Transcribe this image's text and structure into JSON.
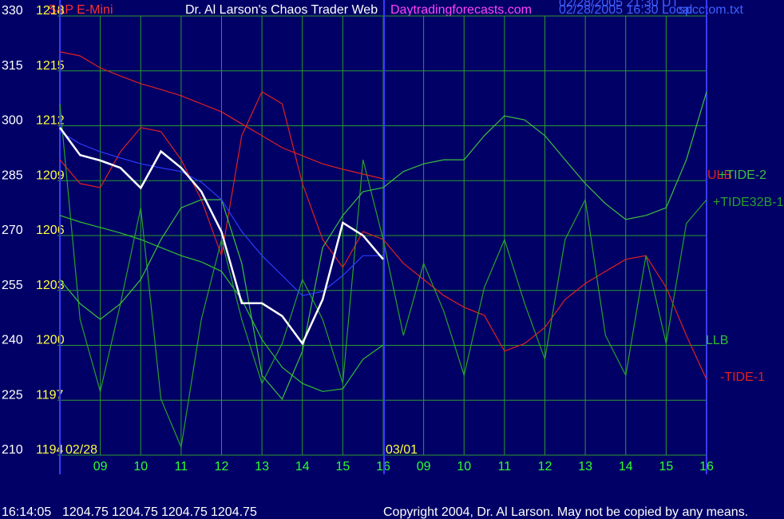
{
  "chart_data": {
    "type": "line",
    "title": "Dr. Al Larson's Chaos Trader Web",
    "site": "Daytradingforecasts.com",
    "instrument": "S&P E-Mini",
    "timestamps": [
      "02/28/2005 21:30 UT",
      "02/28/2005 16:30 Local"
    ],
    "file": "spcctom.txt",
    "date_labels": [
      "02/28",
      "03/01"
    ],
    "x": [
      0,
      0.5,
      1,
      1.5,
      2,
      2.5,
      3,
      3.5,
      4,
      4.5,
      5,
      5.5,
      6,
      6.5,
      7,
      7.5,
      8,
      8.5,
      9,
      9.5,
      10,
      10.5,
      11,
      11.5,
      12,
      12.5,
      13,
      13.5,
      14,
      14.5,
      15,
      15.5,
      16
    ],
    "xlim": [
      0,
      16
    ],
    "xticks": [
      {
        "value": 1,
        "label": "09"
      },
      {
        "value": 2,
        "label": "10"
      },
      {
        "value": 3,
        "label": "11"
      },
      {
        "value": 4,
        "label": "12"
      },
      {
        "value": 5,
        "label": "13"
      },
      {
        "value": 6,
        "label": "14"
      },
      {
        "value": 7,
        "label": "15"
      },
      {
        "value": 8,
        "label": "16"
      },
      {
        "value": 9,
        "label": "09"
      },
      {
        "value": 10,
        "label": "10"
      },
      {
        "value": 11,
        "label": "11"
      },
      {
        "value": 12,
        "label": "12"
      },
      {
        "value": 13,
        "label": "13"
      },
      {
        "value": 14,
        "label": "14"
      },
      {
        "value": 15,
        "label": "15"
      },
      {
        "value": 16,
        "label": "16"
      }
    ],
    "ylim": [
      210,
      330
    ],
    "yticks": [
      210,
      225,
      240,
      255,
      270,
      285,
      300,
      315,
      330
    ],
    "y2lim": [
      1194,
      1218
    ],
    "y2ticks": [
      1194,
      1197,
      1200,
      1203,
      1206,
      1209,
      1212,
      1215,
      1218
    ],
    "grid": true,
    "series": [
      {
        "color": "#ffffff",
        "axis": "y2",
        "values": [
          1211.9,
          1210.4,
          1210.1,
          1209.7,
          1208.6,
          1210.6,
          1209.7,
          1208.4,
          1206.2,
          1202.3,
          1202.3,
          1201.6,
          1200.1,
          1202.5,
          1206.7,
          1206.0,
          1204.7,
          null,
          null,
          null,
          null,
          null,
          null,
          null,
          null,
          null,
          null,
          null,
          null,
          null,
          null,
          null,
          null
        ]
      },
      {
        "color": "#2b3cff",
        "values": [
          298.4,
          295.1,
          292.9,
          291.2,
          289.6,
          288.5,
          287.5,
          284.6,
          279.8,
          271.1,
          264.5,
          259.1,
          253.6,
          254.7,
          259.1,
          264.5,
          264.5,
          null,
          null,
          null,
          null,
          null,
          null,
          null,
          null,
          null,
          null,
          null,
          null,
          null,
          null,
          null,
          null
        ]
      },
      {
        "name": "ULB",
        "color": "#e02020",
        "values": [
          320.2,
          319.1,
          315.8,
          313.6,
          311.5,
          309.9,
          308.2,
          306.0,
          303.8,
          300.5,
          297.3,
          294.0,
          291.8,
          289.6,
          288.1,
          286.8,
          285.5,
          null,
          null,
          null,
          null,
          null,
          null,
          null,
          null,
          null,
          null,
          null,
          null,
          null,
          null,
          null,
          null
        ]
      },
      {
        "name": "+TIDE-2",
        "color": "#3fc03f",
        "values": [
          258.0,
          251.4,
          247.1,
          251.4,
          258.0,
          268.9,
          277.6,
          279.8,
          279.8,
          262.4,
          231.8,
          225.3,
          238.4,
          266.7,
          275.5,
          282.0,
          283.1,
          287.5,
          289.6,
          290.7,
          290.7,
          297.3,
          302.7,
          301.6,
          297.3,
          290.7,
          284.2,
          278.7,
          274.4,
          275.5,
          277.6,
          290.7,
          309.3
        ]
      },
      {
        "name": "+TIDE32B-1",
        "color": "#2aa02a",
        "values": [
          306.0,
          247.1,
          227.4,
          251.4,
          277.6,
          225.3,
          212.2,
          247.1,
          268.9,
          247.1,
          229.6,
          240.5,
          258.0,
          247.1,
          229.6,
          290.7,
          268.9,
          242.7,
          262.4,
          249.3,
          231.8,
          255.8,
          268.9,
          251.4,
          236.2,
          268.9,
          279.8,
          242.7,
          231.8,
          264.5,
          240.5,
          273.3,
          279.8
        ]
      },
      {
        "name": "LLB",
        "color": "#30c030",
        "values": [
          275.5,
          273.7,
          272.2,
          270.7,
          268.9,
          266.7,
          264.5,
          262.8,
          260.2,
          252.5,
          241.6,
          234.0,
          229.6,
          227.4,
          228.1,
          236.2,
          240.1,
          null,
          null,
          null,
          null,
          null,
          null,
          null,
          null,
          null,
          null,
          null,
          null,
          null,
          null,
          null,
          null
        ]
      },
      {
        "name": "-TIDE-1",
        "color": "#e02020",
        "values": [
          290.7,
          284.2,
          283.1,
          292.9,
          299.5,
          298.4,
          290.7,
          279.8,
          264.5,
          297.3,
          309.3,
          306.0,
          284.2,
          268.9,
          261.3,
          271.1,
          268.9,
          262.4,
          258.0,
          253.6,
          250.4,
          248.2,
          238.4,
          240.5,
          244.9,
          252.5,
          256.9,
          260.2,
          263.5,
          264.5,
          255.8,
          242.7,
          230.7
        ]
      }
    ],
    "status": {
      "time": "16:14:05",
      "quotes": [
        1204.75,
        1204.75,
        1204.75,
        1204.75
      ]
    },
    "copyright": "Copyright 2004, Dr. Al Larson. May not be copied by any means."
  }
}
